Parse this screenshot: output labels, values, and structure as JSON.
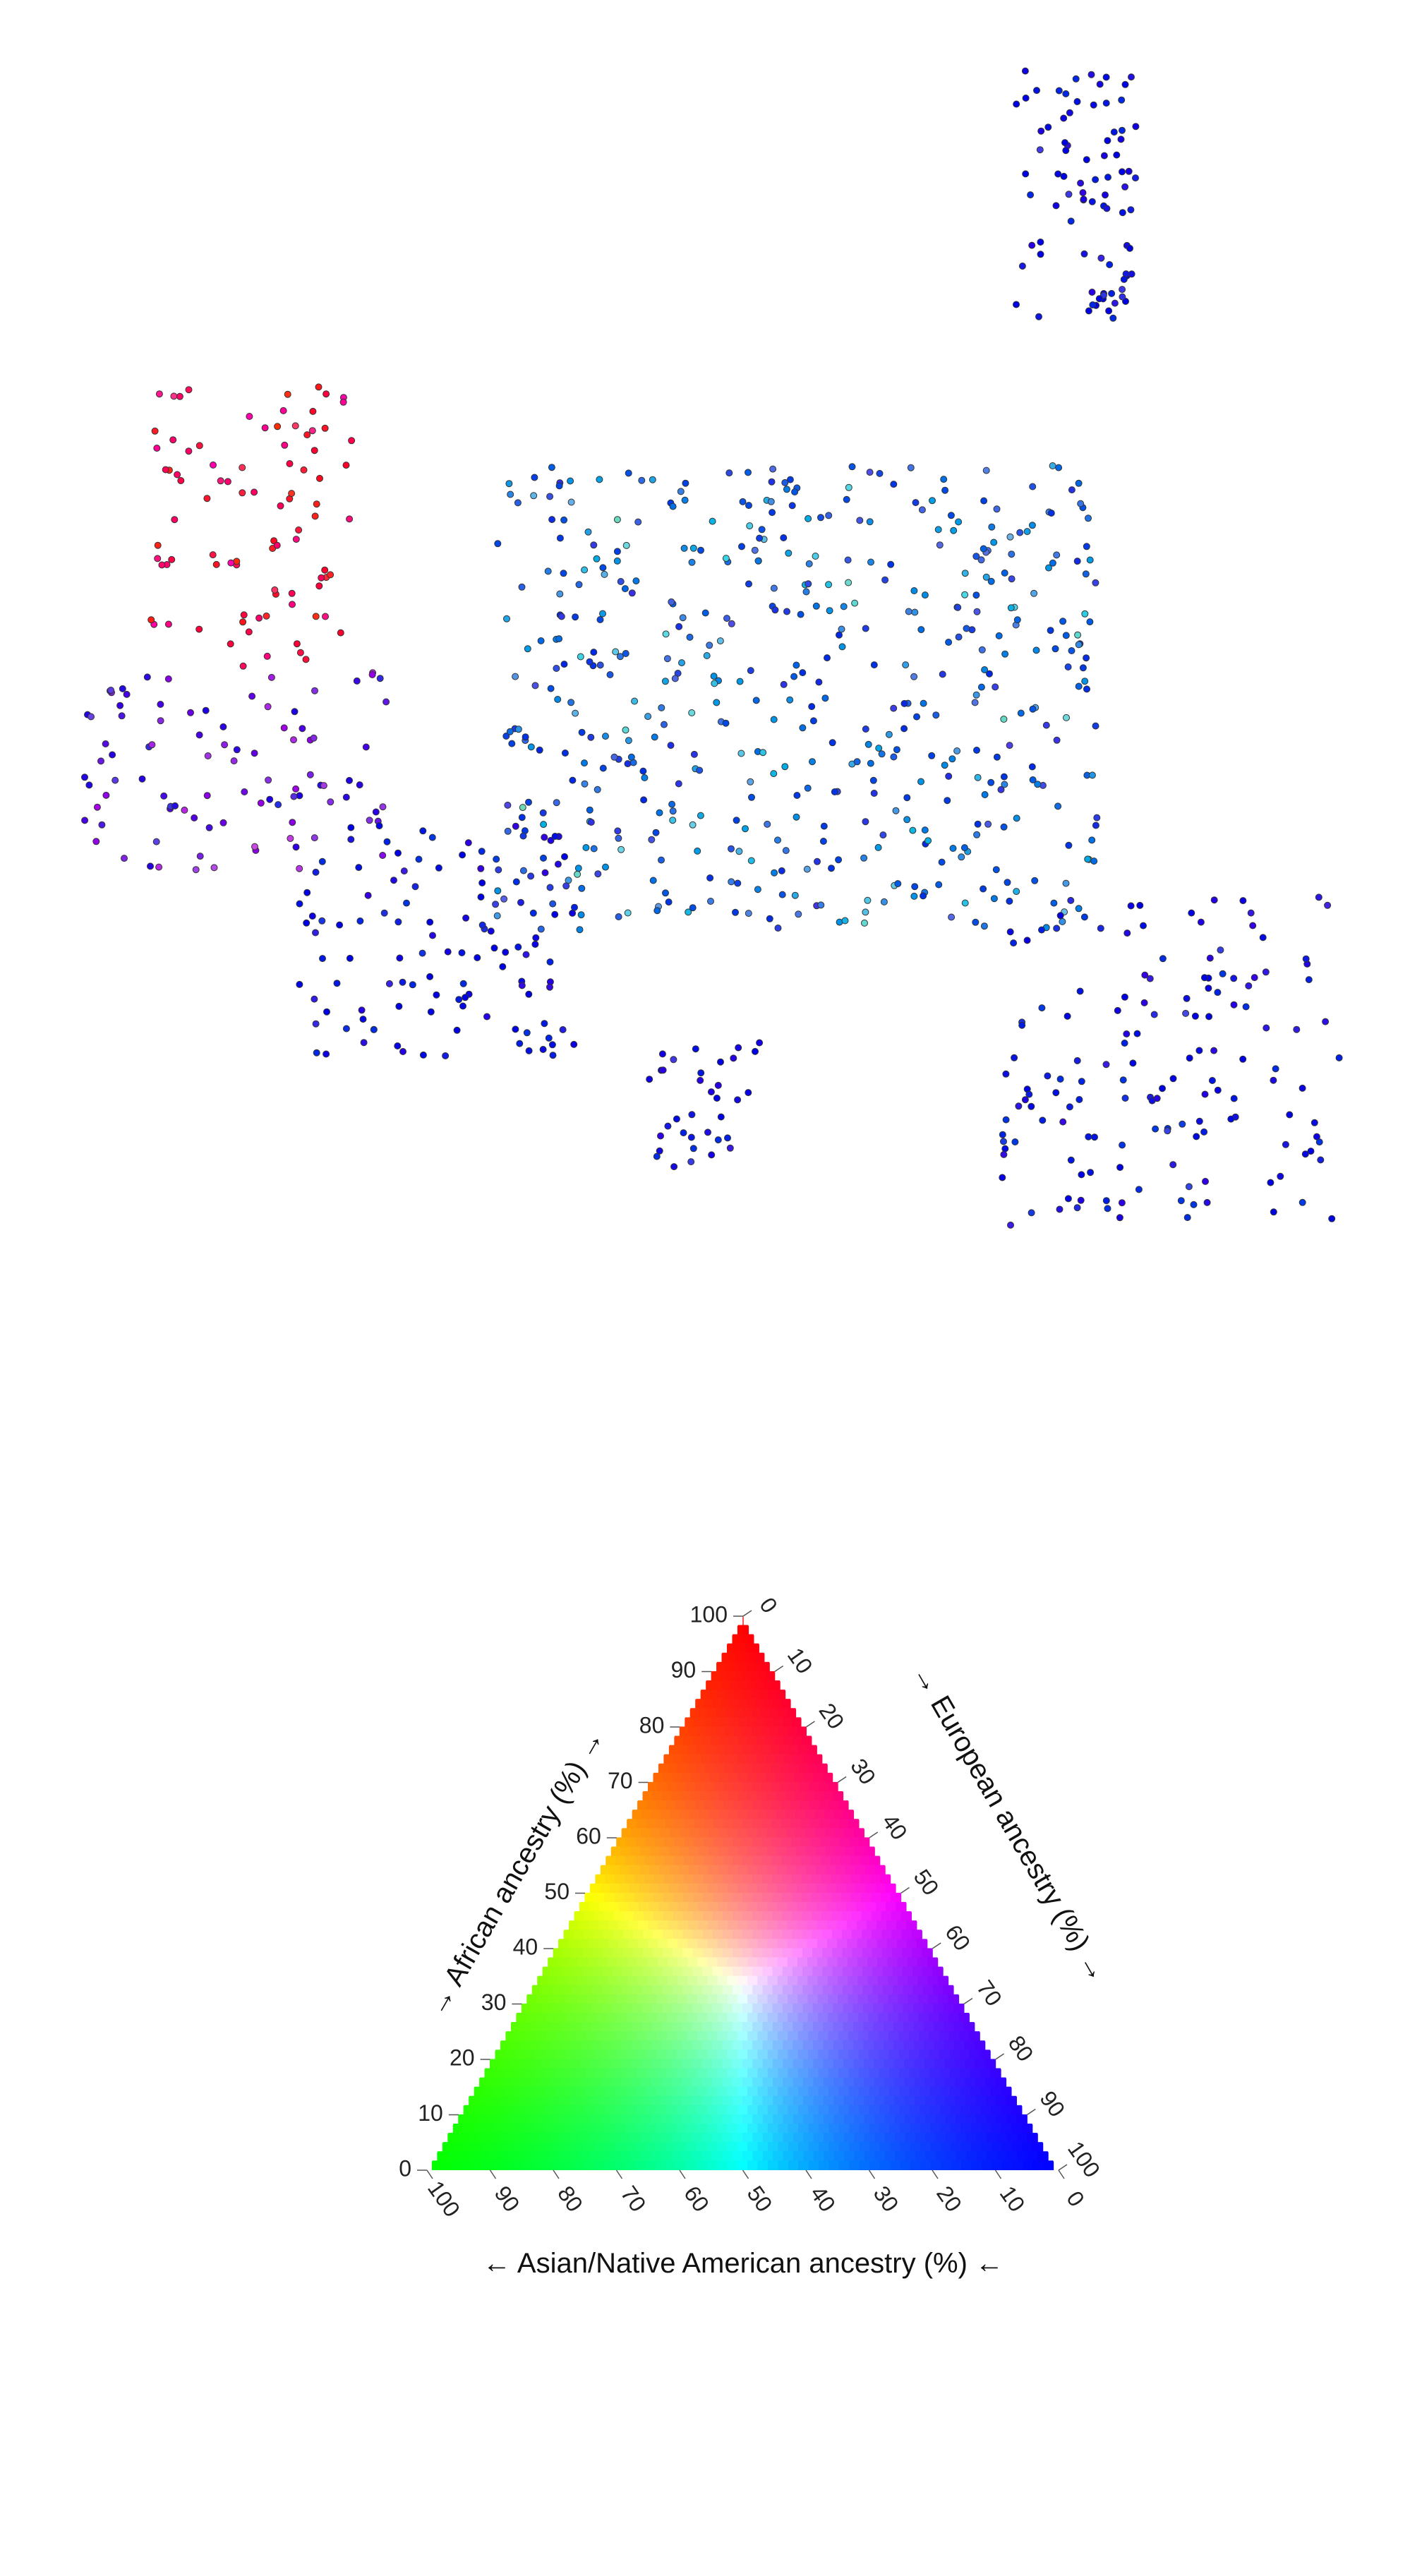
{
  "chart_data": [
    {
      "type": "scatter",
      "title": "",
      "description_note": "",
      "color_encoding": "rgb = (African, Asian/Native American, European) ancestry fractions",
      "colors": {
        "african": "#ff0000",
        "asian_native_american": "#00ff00",
        "european": "#0000ff",
        "point_stroke": "#333333"
      },
      "clusters": [
        {
          "name": "",
          "x": [
            1440,
            1610
          ],
          "y": [
            100,
            460
          ],
          "count": 85,
          "african": 0.02,
          "asian": 0.03
        },
        {
          "name": "",
          "x": [
            210,
            500
          ],
          "y": [
            540,
            950
          ],
          "count": 90,
          "african": 0.7,
          "asian": 0.02
        },
        {
          "name": "",
          "x": [
            120,
            560
          ],
          "y": [
            950,
            1240
          ],
          "count": 95,
          "african": 0.25,
          "asian": 0.03
        },
        {
          "name": "",
          "x": [
            700,
            1560
          ],
          "y": [
            660,
            1320
          ],
          "count": 520,
          "african": 0.04,
          "asian": 0.3
        },
        {
          "name": "",
          "x": [
            420,
            820
          ],
          "y": [
            1170,
            1500
          ],
          "count": 120,
          "african": 0.03,
          "asian": 0.05
        },
        {
          "name": "",
          "x": [
            920,
            1080
          ],
          "y": [
            1470,
            1660
          ],
          "count": 35,
          "african": 0.02,
          "asian": 0.04
        },
        {
          "name": "",
          "x": [
            1420,
            1900
          ],
          "y": [
            1270,
            1740
          ],
          "count": 150,
          "african": 0.03,
          "asian": 0.06
        }
      ]
    },
    {
      "type": "ternary_legend",
      "axes": {
        "african": {
          "label": "→ African ancestry (%) →",
          "ticks": [
            "0",
            "10",
            "20",
            "30",
            "40",
            "50",
            "60",
            "70",
            "80",
            "90",
            "100"
          ]
        },
        "european": {
          "label": "→ European ancestry (%) →",
          "ticks": [
            "0",
            "10",
            "20",
            "30",
            "40",
            "50",
            "60",
            "70",
            "80",
            "90",
            "100"
          ]
        },
        "asian": {
          "label": "← Asian/Native American ancestry (%) ←",
          "ticks": [
            "100",
            "90",
            "80",
            "70",
            "60",
            "50",
            "40",
            "30",
            "20",
            "10",
            "0"
          ]
        }
      },
      "vertex_colors": {
        "top": "#ff0000",
        "bottom_left": "#00ff00",
        "bottom_right": "#0000ff"
      }
    }
  ]
}
